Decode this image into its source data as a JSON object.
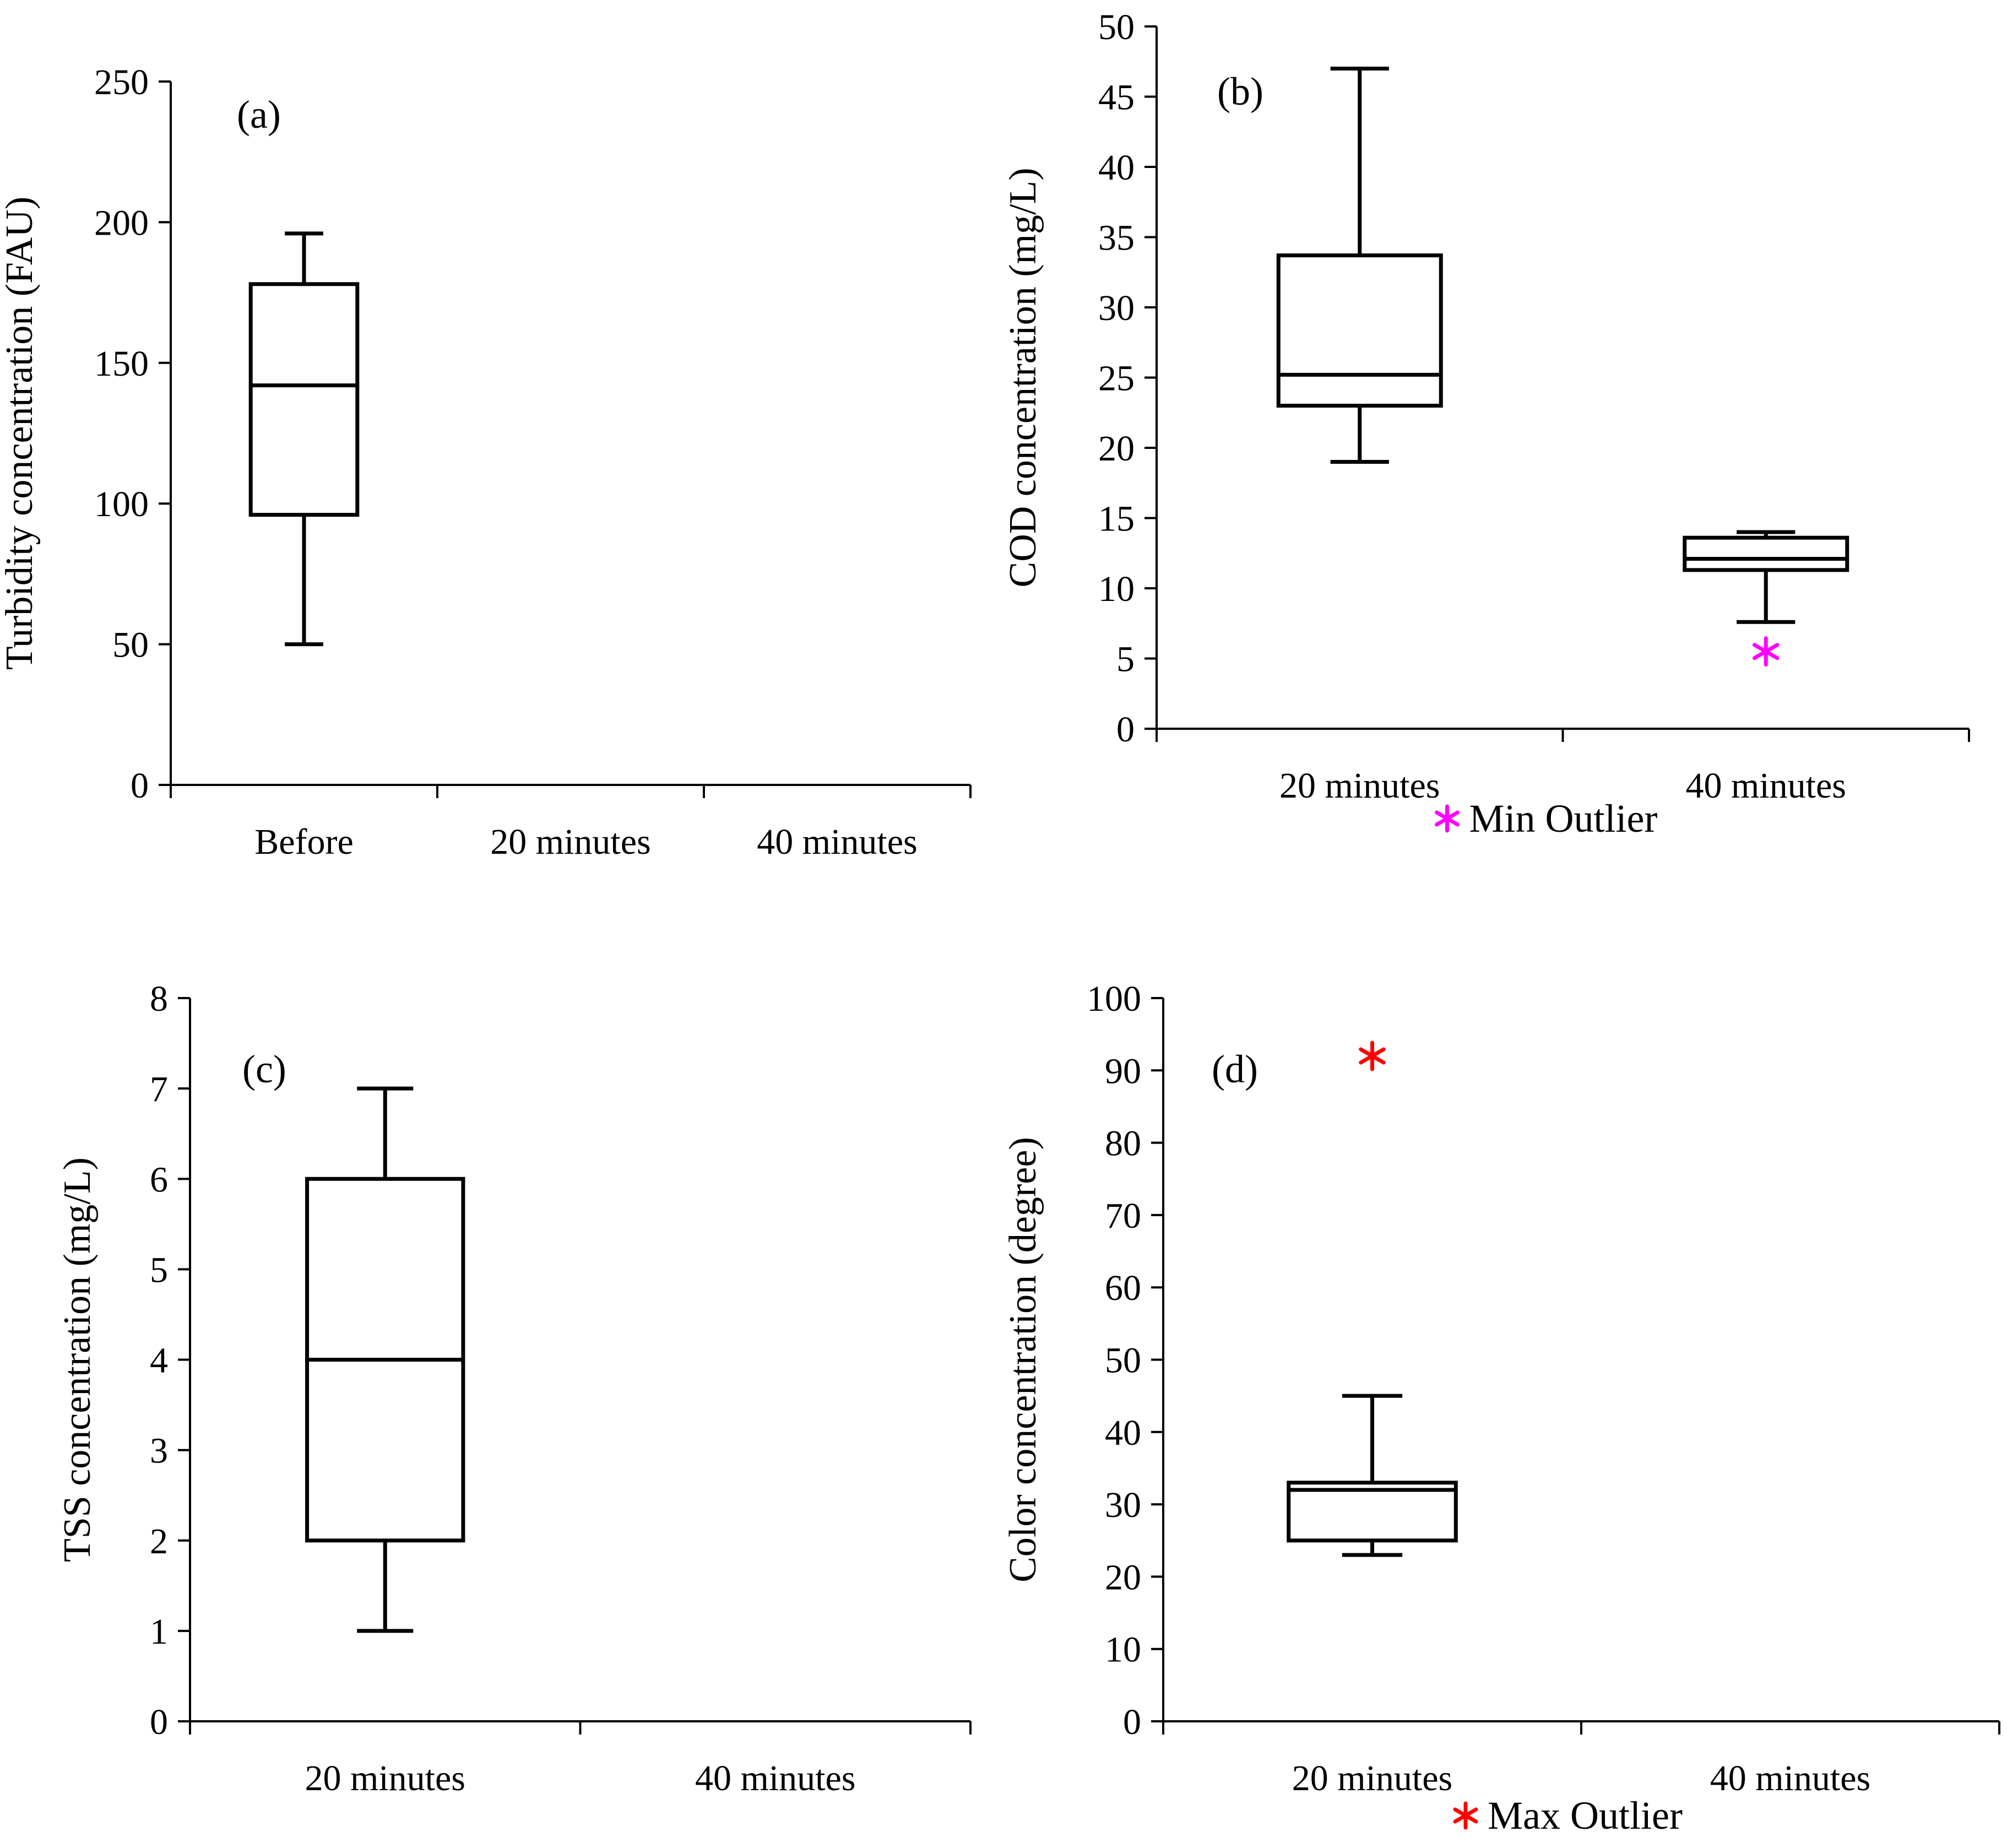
{
  "chart_data": [
    {
      "type": "box",
      "panel_label": "(a)",
      "ylabel": "Turbidity concentration (FAU)",
      "ylim": [
        0,
        250
      ],
      "yticks": [
        "0",
        "50",
        "100",
        "150",
        "200",
        "250"
      ],
      "categories": [
        "Before",
        "20 minutes",
        "40 minutes"
      ],
      "boxes": [
        {
          "category": "Before",
          "min": 50,
          "q1": 96,
          "median": 142,
          "q3": 178,
          "max": 196
        },
        {
          "category": "20 minutes",
          "min": 0,
          "q1": 0,
          "median": 0,
          "q3": 0,
          "max": 0
        },
        {
          "category": "40 minutes",
          "min": 0,
          "q1": 0,
          "median": 0,
          "q3": 0,
          "max": 0
        }
      ],
      "outliers": [],
      "legend": null
    },
    {
      "type": "box",
      "panel_label": "(b)",
      "ylabel": "COD concentration (mg/L)",
      "ylim": [
        0,
        50
      ],
      "yticks": [
        "0",
        "5",
        "10",
        "15",
        "20",
        "25",
        "30",
        "35",
        "40",
        "45",
        "50"
      ],
      "categories": [
        "20 minutes",
        "40 minutes"
      ],
      "boxes": [
        {
          "category": "20 minutes",
          "min": 19,
          "q1": 23,
          "median": 25.2,
          "q3": 33.7,
          "max": 47
        },
        {
          "category": "40 minutes",
          "min": 7.6,
          "q1": 11.3,
          "median": 12.1,
          "q3": 13.6,
          "max": 14
        }
      ],
      "outliers": [
        {
          "category": "40 minutes",
          "value": 5.5,
          "kind": "min",
          "color": "#ff00ff"
        }
      ],
      "legend": {
        "label": "Min Outlier",
        "color": "#ff00ff"
      }
    },
    {
      "type": "box",
      "panel_label": "(c)",
      "ylabel": "TSS concentration (mg/L)",
      "ylim": [
        0,
        8
      ],
      "yticks": [
        "0",
        "1",
        "2",
        "3",
        "4",
        "5",
        "6",
        "7",
        "8"
      ],
      "categories": [
        "20 minutes",
        "40 minutes"
      ],
      "boxes": [
        {
          "category": "20 minutes",
          "min": 1,
          "q1": 2,
          "median": 4,
          "q3": 6,
          "max": 7
        },
        {
          "category": "40 minutes",
          "min": 0,
          "q1": 0,
          "median": 0,
          "q3": 0,
          "max": 0
        }
      ],
      "outliers": [],
      "legend": null
    },
    {
      "type": "box",
      "panel_label": "(d)",
      "ylabel": "Color concentration (degree)",
      "ylim": [
        0,
        100
      ],
      "yticks": [
        "0",
        "10",
        "20",
        "30",
        "40",
        "50",
        "60",
        "70",
        "80",
        "90",
        "100"
      ],
      "categories": [
        "20 minutes",
        "40 minutes"
      ],
      "boxes": [
        {
          "category": "20 minutes",
          "min": 23,
          "q1": 25,
          "median": 32,
          "q3": 33,
          "max": 45
        },
        {
          "category": "40 minutes",
          "min": 0,
          "q1": 0,
          "median": 0,
          "q3": 0,
          "max": 0
        }
      ],
      "outliers": [
        {
          "category": "20 minutes",
          "value": 92,
          "kind": "max",
          "color": "#ff0000"
        }
      ],
      "legend": {
        "label": "Max Outlier",
        "color": "#ff0000"
      }
    }
  ]
}
